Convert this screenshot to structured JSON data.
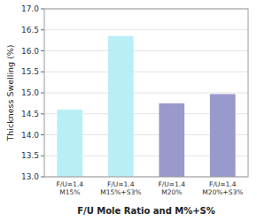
{
  "chart_data": {
    "type": "bar",
    "categories": [
      "F/U=1.4\nM15%",
      "F/U=1.4\nM15%+S3%",
      "F/U=1.4\nM20%",
      "F/U=1.4\nM20%+S3%"
    ],
    "values": [
      14.6,
      16.35,
      14.75,
      14.97
    ],
    "colors": [
      "#b8eef5",
      "#b8eef5",
      "#9999cc",
      "#9999cc"
    ],
    "xlabel": "F/U Mole Ratio and M%+S%",
    "ylabel": "Thickness Swelling (%)",
    "ylim": [
      13.0,
      17.0
    ],
    "yticks": [
      {
        "value": 13.0,
        "label": "13.0"
      },
      13.5,
      {
        "value": 14.0,
        "label": "14.0"
      },
      14.5,
      {
        "value": 15.0,
        "label": "15.0"
      },
      15.5,
      {
        "value": 16.0,
        "label": "16.0"
      },
      16.5,
      {
        "value": 17.0,
        "label": "17.0"
      }
    ],
    "grid": true
  }
}
